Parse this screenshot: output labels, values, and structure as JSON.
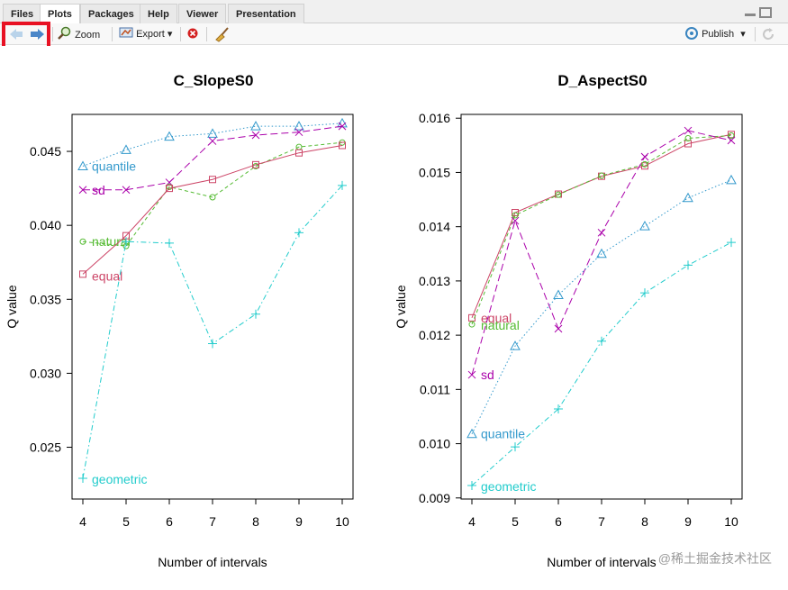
{
  "tabs": [
    {
      "label": "Files",
      "active": false
    },
    {
      "label": "Plots",
      "active": true
    },
    {
      "label": "Packages",
      "active": false
    },
    {
      "label": "Help",
      "active": false
    },
    {
      "label": "Viewer",
      "active": false
    },
    {
      "label": "Presentation",
      "active": false
    }
  ],
  "toolbar": {
    "back_icon": "arrow-left-icon",
    "forward_icon": "arrow-right-icon",
    "zoom_label": "Zoom",
    "export_label": "Export",
    "export_caret": "▾",
    "publish_label": "Publish",
    "publish_caret": "▾"
  },
  "watermark": "@稀土掘金技术社区",
  "colors": {
    "quantile": "#3399cc",
    "sd": "#aa00aa",
    "natural": "#55bb33",
    "equal": "#cc4466",
    "geometric": "#22cccc"
  },
  "chart_data": [
    {
      "type": "line",
      "title": "C_SlopeS0",
      "xlabel": "Number of intervals",
      "ylabel": "Q value",
      "x": [
        4,
        5,
        6,
        7,
        8,
        9,
        10
      ],
      "xlim": [
        3.75,
        10.25
      ],
      "ylim": [
        0.0215,
        0.0475
      ],
      "yticks": [
        "0.025",
        "0.030",
        "0.035",
        "0.040",
        "0.045"
      ],
      "ytick_values": [
        0.025,
        0.03,
        0.035,
        0.04,
        0.045
      ],
      "series": [
        {
          "name": "quantile",
          "values": [
            0.044,
            0.0451,
            0.046,
            0.0462,
            0.0467,
            0.0467,
            0.0469
          ]
        },
        {
          "name": "sd",
          "values": [
            0.0424,
            0.0424,
            0.0429,
            0.0457,
            0.0461,
            0.0463,
            0.0467
          ]
        },
        {
          "name": "natural",
          "values": [
            0.0389,
            0.0386,
            0.0426,
            0.0419,
            0.044,
            0.0453,
            0.0456
          ]
        },
        {
          "name": "equal",
          "values": [
            0.0367,
            0.0393,
            0.0425,
            0.0431,
            0.0441,
            0.0449,
            0.0454
          ]
        },
        {
          "name": "geometric",
          "values": [
            0.0229,
            0.0389,
            0.0388,
            0.032,
            0.034,
            0.0395,
            0.0427
          ]
        }
      ]
    },
    {
      "type": "line",
      "title": "D_AspectS0",
      "xlabel": "Number of intervals",
      "ylabel": "Q value",
      "x": [
        4,
        5,
        6,
        7,
        8,
        9,
        10
      ],
      "xlim": [
        3.75,
        10.25
      ],
      "ylim": [
        0.00898,
        0.01607
      ],
      "yticks": [
        "0.009",
        "0.010",
        "0.011",
        "0.012",
        "0.013",
        "0.014",
        "0.015",
        "0.016"
      ],
      "ytick_values": [
        0.009,
        0.01,
        0.011,
        0.012,
        0.013,
        0.014,
        0.015,
        0.016
      ],
      "series": [
        {
          "name": "equal",
          "values": [
            0.01232,
            0.01426,
            0.0146,
            0.01493,
            0.01512,
            0.01553,
            0.0157
          ]
        },
        {
          "name": "natural",
          "values": [
            0.0122,
            0.01421,
            0.01459,
            0.01494,
            0.01515,
            0.01563,
            0.01568
          ]
        },
        {
          "name": "sd",
          "values": [
            0.01127,
            0.01411,
            0.01212,
            0.01389,
            0.01529,
            0.01577,
            0.01559
          ]
        },
        {
          "name": "quantile",
          "values": [
            0.01018,
            0.0118,
            0.01274,
            0.0135,
            0.01401,
            0.01453,
            0.01486
          ]
        },
        {
          "name": "geometric",
          "values": [
            0.00923,
            0.00994,
            0.01064,
            0.01189,
            0.01278,
            0.01329,
            0.01371
          ]
        }
      ]
    }
  ]
}
